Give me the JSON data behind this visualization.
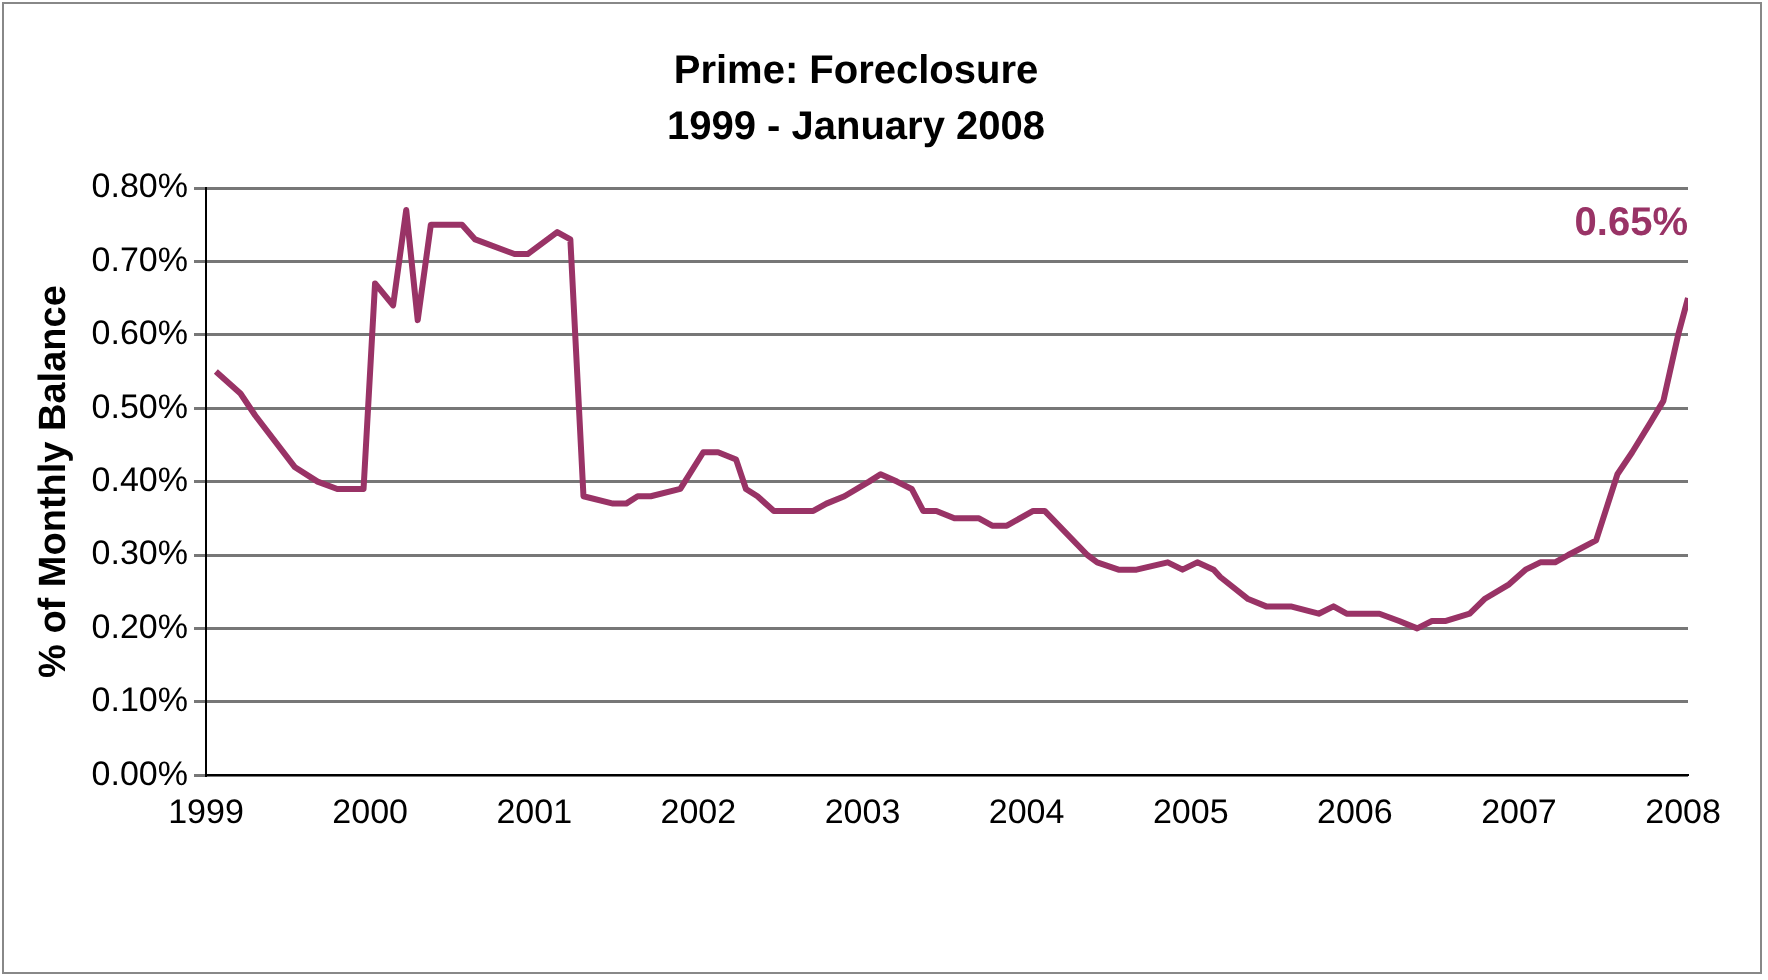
{
  "chart_data": {
    "type": "line",
    "title": "Prime: Foreclosure",
    "subtitle": "1999 - January 2008",
    "ylabel": "% of Monthly Balance",
    "x": [
      1999.06,
      1999.21,
      1999.3,
      1999.54,
      1999.68,
      1999.8,
      1999.89,
      1999.96,
      2000.03,
      2000.14,
      2000.22,
      2000.29,
      2000.37,
      2000.56,
      2000.64,
      2000.88,
      2000.96,
      2001.14,
      2001.22,
      2001.3,
      2001.48,
      2001.56,
      2001.63,
      2001.71,
      2001.89,
      2002.03,
      2002.12,
      2002.23,
      2002.29,
      2002.36,
      2002.46,
      2002.7,
      2002.78,
      2002.89,
      2003.04,
      2003.11,
      2003.21,
      2003.3,
      2003.37,
      2003.45,
      2003.56,
      2003.63,
      2003.71,
      2003.79,
      2003.88,
      2004.04,
      2004.11,
      2004.37,
      2004.43,
      2004.56,
      2004.67,
      2004.86,
      2004.95,
      2005.04,
      2005.14,
      2005.18,
      2005.35,
      2005.46,
      2005.61,
      2005.78,
      2005.87,
      2005.95,
      2006.04,
      2006.15,
      2006.27,
      2006.38,
      2006.47,
      2006.55,
      2006.7,
      2006.79,
      2006.94,
      2007.04,
      2007.13,
      2007.22,
      2007.3,
      2007.47,
      2007.6,
      2007.69,
      2007.8,
      2007.88,
      2007.97,
      2008.03
    ],
    "series": [
      {
        "color": "#993366",
        "values": [
          0.55,
          0.52,
          0.49,
          0.42,
          0.4,
          0.39,
          0.39,
          0.39,
          0.67,
          0.64,
          0.77,
          0.62,
          0.75,
          0.75,
          0.73,
          0.71,
          0.71,
          0.74,
          0.73,
          0.38,
          0.37,
          0.37,
          0.38,
          0.38,
          0.39,
          0.44,
          0.44,
          0.43,
          0.39,
          0.38,
          0.36,
          0.36,
          0.37,
          0.38,
          0.4,
          0.41,
          0.4,
          0.39,
          0.36,
          0.36,
          0.35,
          0.35,
          0.35,
          0.34,
          0.34,
          0.36,
          0.36,
          0.3,
          0.29,
          0.28,
          0.28,
          0.29,
          0.28,
          0.29,
          0.28,
          0.27,
          0.24,
          0.23,
          0.23,
          0.22,
          0.23,
          0.22,
          0.22,
          0.22,
          0.21,
          0.2,
          0.21,
          0.21,
          0.22,
          0.24,
          0.26,
          0.28,
          0.29,
          0.29,
          0.3,
          0.32,
          0.41,
          0.44,
          0.48,
          0.51,
          0.6,
          0.65
        ]
      }
    ],
    "annotations": [
      "0.65%"
    ],
    "xlim": [
      1999,
      2008.03
    ],
    "xticks": [
      1999,
      2000,
      2001,
      2002,
      2003,
      2004,
      2005,
      2006,
      2007,
      2008
    ],
    "ylim": [
      0,
      0.8
    ],
    "yticks": [
      {
        "value": 0,
        "label": "0.00%"
      },
      {
        "value": 0.1,
        "label": "0.10%"
      },
      {
        "value": 0.2,
        "label": "0.20%"
      },
      {
        "value": 0.3,
        "label": "0.30%"
      },
      {
        "value": 0.4,
        "label": "0.40%"
      },
      {
        "value": 0.5,
        "label": "0.50%"
      },
      {
        "value": 0.6,
        "label": "0.60%"
      },
      {
        "value": 0.7,
        "label": "0.70%"
      },
      {
        "value": 0.8,
        "label": "0.80%"
      }
    ],
    "grid": "y",
    "legend": false,
    "marker": "none",
    "line_style": "solid"
  }
}
